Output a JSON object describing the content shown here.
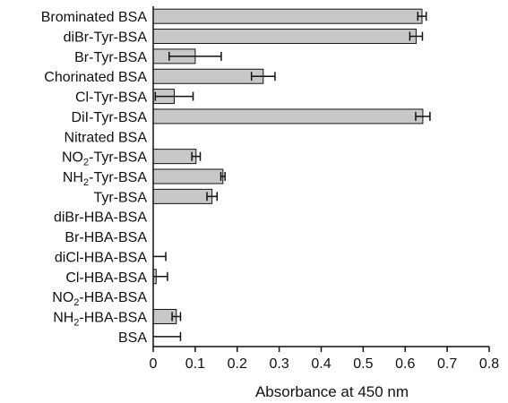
{
  "chart_data": {
    "type": "bar",
    "orientation": "horizontal",
    "title": "",
    "xlabel": "Absorbance at 450 nm",
    "ylabel": "",
    "xlim": [
      0,
      0.8
    ],
    "x_ticks": [
      "0",
      "0.1",
      "0.2",
      "0.3",
      "0.4",
      "0.5",
      "0.6",
      "0.7",
      "0.8"
    ],
    "grid": false,
    "legend": "none",
    "bar_color": "#c8c8c8",
    "categories": [
      {
        "label": "Brominated BSA",
        "sub": "",
        "rest": "",
        "value": 0.64,
        "error": 0.01
      },
      {
        "label": "diBr-Tyr-BSA",
        "sub": "",
        "rest": "",
        "value": 0.626,
        "error": 0.015
      },
      {
        "label": "Br-Tyr-BSA",
        "sub": "",
        "rest": "",
        "value": 0.1,
        "error": 0.062
      },
      {
        "label": "Chorinated BSA",
        "sub": "",
        "rest": "",
        "value": 0.262,
        "error": 0.028
      },
      {
        "label": "Cl-Tyr-BSA",
        "sub": "",
        "rest": "",
        "value": 0.05,
        "error": 0.045
      },
      {
        "label": "DiI-Tyr-BSA",
        "sub": "",
        "rest": "",
        "value": 0.642,
        "error": 0.017
      },
      {
        "label": "Nitrated BSA",
        "sub": "",
        "rest": "",
        "value": 0,
        "error": 0
      },
      {
        "label": "NO",
        "sub": "2",
        "rest": "-Tyr-BSA",
        "value": 0.102,
        "error": 0.01
      },
      {
        "label": "NH",
        "sub": "2",
        "rest": "-Tyr-BSA",
        "value": 0.166,
        "error": 0.005
      },
      {
        "label": "Tyr-BSA",
        "sub": "",
        "rest": "",
        "value": 0.14,
        "error": 0.012
      },
      {
        "label": "diBr-HBA-BSA",
        "sub": "",
        "rest": "",
        "value": 0,
        "error": 0
      },
      {
        "label": "Br-HBA-BSA",
        "sub": "",
        "rest": "",
        "value": 0,
        "error": 0
      },
      {
        "label": "diCl-HBA-BSA",
        "sub": "",
        "rest": "",
        "value": 0,
        "error": 0.03
      },
      {
        "label": "Cl-HBA-BSA",
        "sub": "",
        "rest": "",
        "value": 0.007,
        "error": 0.027
      },
      {
        "label": "NO",
        "sub": "2",
        "rest": "-HBA-BSA",
        "value": 0,
        "error": 0
      },
      {
        "label": "NH",
        "sub": "2",
        "rest": "-HBA-BSA",
        "value": 0.055,
        "error": 0.01
      },
      {
        "label": "BSA",
        "sub": "",
        "rest": "",
        "value": 0,
        "error": 0.065
      }
    ]
  }
}
